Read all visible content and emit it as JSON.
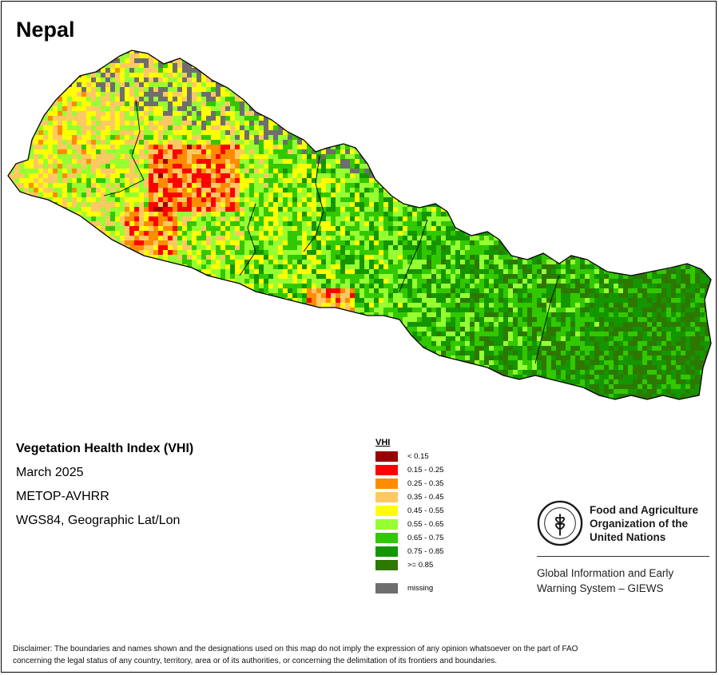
{
  "title": "Nepal",
  "map_info": {
    "index_name": "Vegetation Health Index (VHI)",
    "period": "March 2025",
    "sensor": "METOP-AVHRR",
    "projection": "WGS84, Geographic Lat/Lon"
  },
  "legend": {
    "title": "VHI",
    "classes": [
      {
        "label": "< 0.15",
        "color": "#9b0000"
      },
      {
        "label": "0.15 - 0.25",
        "color": "#ff0000"
      },
      {
        "label": "0.25 - 0.35",
        "color": "#ff8c00"
      },
      {
        "label": "0.35 - 0.45",
        "color": "#ffc864"
      },
      {
        "label": "0.45 - 0.55",
        "color": "#ffff00"
      },
      {
        "label": "0.55 - 0.65",
        "color": "#96ff32"
      },
      {
        "label": "0.65 - 0.75",
        "color": "#32c800"
      },
      {
        "label": "0.75 - 0.85",
        "color": "#149600"
      },
      {
        "label": ">= 0.85",
        "color": "#2d7800"
      }
    ],
    "missing": {
      "label": "missing",
      "color": "#6e6e6e"
    }
  },
  "fao": {
    "logo_icon": "fao-logo-icon",
    "name_line1": "Food and Agriculture",
    "name_line2": "Organization of the",
    "name_line3": "United Nations",
    "giews_line1": "Global Information and Early",
    "giews_line2": "Warning System – GIEWS"
  },
  "disclaimer_line1": "Disclaimer: The boundaries and names shown and the designations used on this map do not imply the expression of any opinion whatsoever on the part of FAO",
  "disclaimer_line2": "concerning the legal status of any country, territory, area or of its authorities, or concerning the delimitation of its frontiers and boundaries."
}
